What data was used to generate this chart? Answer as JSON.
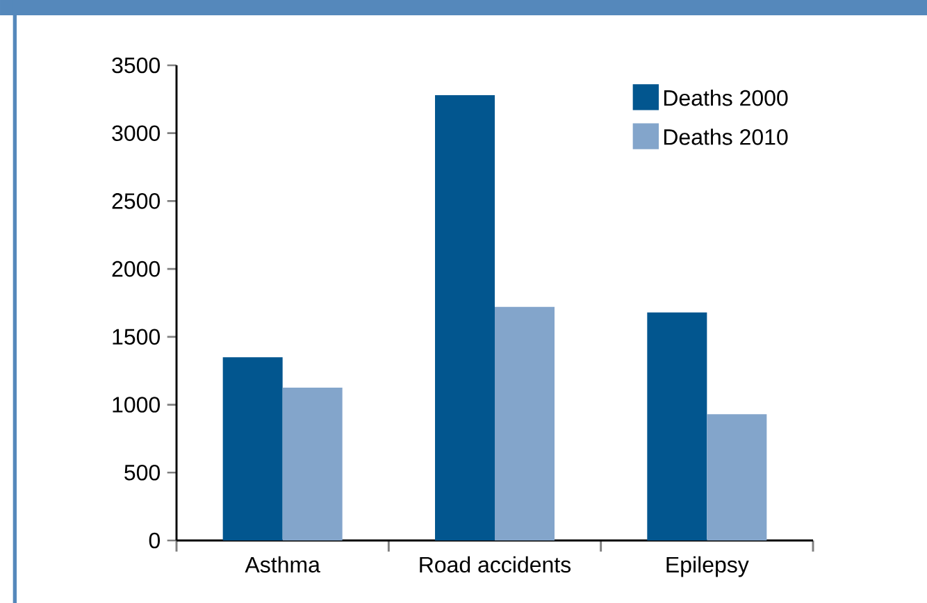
{
  "chart_data": {
    "type": "bar",
    "categories": [
      "Asthma",
      "Road accidents",
      "Epilepsy"
    ],
    "series": [
      {
        "name": "Deaths 2000",
        "color": "#02568f",
        "values": [
          1350,
          3280,
          1680
        ]
      },
      {
        "name": "Deaths 2010",
        "color": "#83a5cb",
        "values": [
          1125,
          1720,
          930
        ]
      }
    ],
    "ylim": [
      0,
      3500
    ],
    "yticks": [
      0,
      500,
      1000,
      1500,
      2000,
      2500,
      3000,
      3500
    ],
    "grid": false,
    "legend": "top right"
  }
}
